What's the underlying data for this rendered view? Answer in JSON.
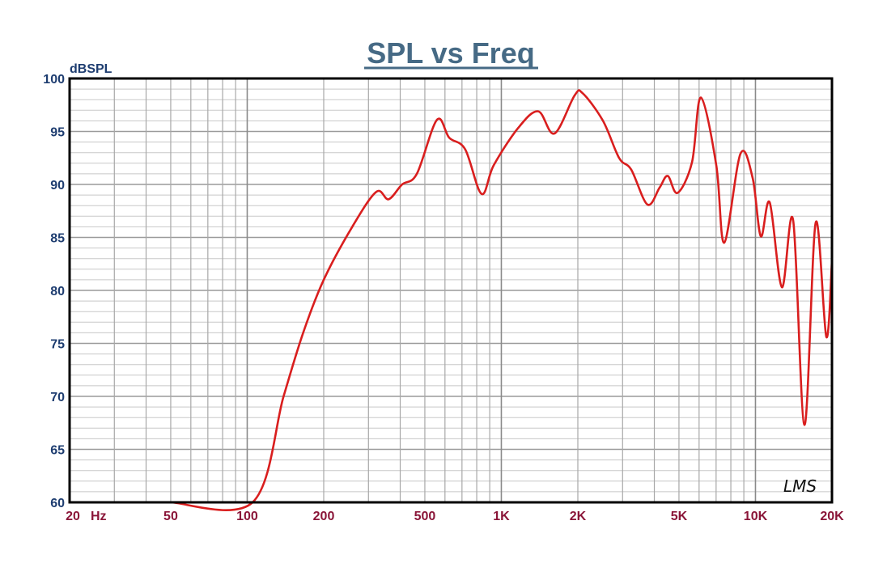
{
  "chart_data": {
    "type": "line",
    "title": "SPL vs Freq",
    "ylabel": "dBSPL",
    "xlabel": "",
    "xscale": "log",
    "xlim": [
      20,
      20000
    ],
    "ylim": [
      60,
      100
    ],
    "grid": true,
    "x_ticks": [
      {
        "value": 20,
        "label": "20"
      },
      {
        "value": 50,
        "label": "50"
      },
      {
        "value": 100,
        "label": "100"
      },
      {
        "value": 200,
        "label": "200"
      },
      {
        "value": 500,
        "label": "500"
      },
      {
        "value": 1000,
        "label": "1K"
      },
      {
        "value": 2000,
        "label": "2K"
      },
      {
        "value": 5000,
        "label": "5K"
      },
      {
        "value": 10000,
        "label": "10K"
      },
      {
        "value": 20000,
        "label": "20K"
      }
    ],
    "x_unit_label": "Hz",
    "y_ticks": [
      {
        "value": 100,
        "label": "100"
      },
      {
        "value": 95,
        "label": "95"
      },
      {
        "value": 90,
        "label": "90"
      },
      {
        "value": 85,
        "label": "85"
      },
      {
        "value": 80,
        "label": "80"
      },
      {
        "value": 75,
        "label": "75"
      },
      {
        "value": 70,
        "label": "70"
      },
      {
        "value": 65,
        "label": "65"
      },
      {
        "value": 60,
        "label": "60"
      }
    ],
    "series": [
      {
        "name": "SPL",
        "color": "#d91e1e",
        "x": [
          50,
          105,
          139,
          166,
          200,
          259,
          322,
          360,
          407,
          465,
          558,
          624,
          721,
          836,
          933,
          1162,
          1396,
          1617,
          1942,
          2090,
          2512,
          2906,
          3244,
          3758,
          4196,
          4516,
          4934,
          5628,
          6098,
          7012,
          7538,
          8730,
          9750,
          10496,
          11378,
          12706,
          14072,
          15596,
          17260,
          19012,
          20000
        ],
        "y": [
          60,
          60,
          70,
          76,
          81,
          86,
          89.3,
          88.6,
          90,
          91,
          96.1,
          94.4,
          93.3,
          89.1,
          91.8,
          95.3,
          96.9,
          94.8,
          98.4,
          98.6,
          96,
          92.5,
          91.4,
          88.1,
          89.7,
          90.8,
          89.2,
          92.1,
          98.2,
          91.8,
          84.5,
          92.9,
          90.6,
          85.1,
          88.3,
          80.3,
          86.6,
          67.3,
          86.4,
          75.6,
          82.8
        ]
      }
    ],
    "watermark": "LMS"
  }
}
